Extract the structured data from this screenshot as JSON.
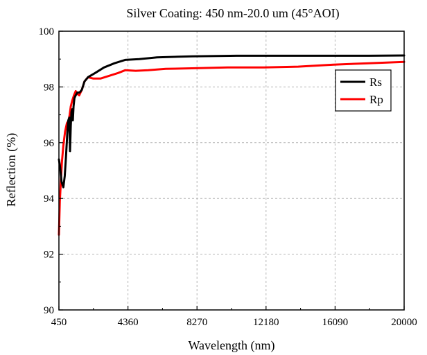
{
  "chart_data": {
    "type": "line",
    "title": "Silver Coating: 450 nm-20.0 um (45°AOI)",
    "xlabel": "Wavelength (nm)",
    "ylabel": "Reflection (%)",
    "xlim": [
      450,
      20000
    ],
    "ylim": [
      90,
      100
    ],
    "xticks": [
      450,
      4360,
      8270,
      12180,
      16090,
      20000
    ],
    "yticks": [
      90,
      92,
      94,
      96,
      98,
      100
    ],
    "grid": true,
    "legend_position": "top-right",
    "series": [
      {
        "name": "Rs",
        "color": "#000000",
        "points": [
          [
            450,
            95.4
          ],
          [
            520,
            95.1
          ],
          [
            600,
            94.6
          ],
          [
            700,
            94.4
          ],
          [
            780,
            94.8
          ],
          [
            850,
            95.5
          ],
          [
            920,
            96.3
          ],
          [
            980,
            96.8
          ],
          [
            1040,
            96.9
          ],
          [
            1080,
            95.7
          ],
          [
            1120,
            96.6
          ],
          [
            1160,
            97.1
          ],
          [
            1200,
            97.2
          ],
          [
            1240,
            96.8
          ],
          [
            1280,
            97.3
          ],
          [
            1330,
            97.6
          ],
          [
            1400,
            97.7
          ],
          [
            1500,
            97.8
          ],
          [
            1620,
            97.8
          ],
          [
            1750,
            97.9
          ],
          [
            1900,
            98.2
          ],
          [
            2100,
            98.35
          ],
          [
            2500,
            98.5
          ],
          [
            3000,
            98.7
          ],
          [
            3600,
            98.85
          ],
          [
            4200,
            98.97
          ],
          [
            5000,
            99.0
          ],
          [
            6000,
            99.06
          ],
          [
            8000,
            99.1
          ],
          [
            10500,
            99.12
          ],
          [
            13000,
            99.12
          ],
          [
            16000,
            99.12
          ],
          [
            18000,
            99.12
          ],
          [
            20000,
            99.13
          ]
        ]
      },
      {
        "name": "Rp",
        "color": "#ff0000",
        "points": [
          [
            450,
            92.7
          ],
          [
            500,
            93.9
          ],
          [
            560,
            94.6
          ],
          [
            620,
            95.3
          ],
          [
            700,
            95.9
          ],
          [
            800,
            96.4
          ],
          [
            900,
            96.7
          ],
          [
            1000,
            96.8
          ],
          [
            1060,
            97.0
          ],
          [
            1120,
            97.3
          ],
          [
            1200,
            97.5
          ],
          [
            1300,
            97.7
          ],
          [
            1400,
            97.85
          ],
          [
            1500,
            97.75
          ],
          [
            1600,
            97.7
          ],
          [
            1750,
            97.9
          ],
          [
            1900,
            98.2
          ],
          [
            2100,
            98.35
          ],
          [
            2400,
            98.3
          ],
          [
            2800,
            98.3
          ],
          [
            3300,
            98.4
          ],
          [
            3800,
            98.5
          ],
          [
            4200,
            98.6
          ],
          [
            4800,
            98.58
          ],
          [
            5500,
            98.6
          ],
          [
            6500,
            98.65
          ],
          [
            8000,
            98.67
          ],
          [
            10000,
            98.7
          ],
          [
            12000,
            98.7
          ],
          [
            14000,
            98.73
          ],
          [
            16000,
            98.8
          ],
          [
            18000,
            98.85
          ],
          [
            20000,
            98.9
          ]
        ]
      }
    ]
  }
}
